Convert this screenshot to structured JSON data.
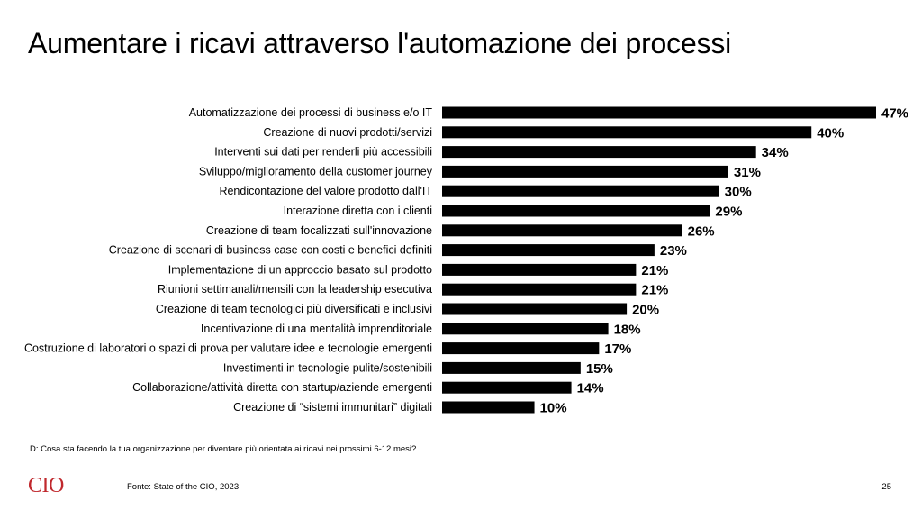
{
  "slide": {
    "title": "Aumentare i ricavi attraverso l'automazione dei processi",
    "question": "D: Cosa sta facendo la tua organizzazione per diventare più orientata ai ricavi nei prossimi 6-12 mesi?",
    "logo": "CIO",
    "source": "Fonte: State of the CIO, 2023",
    "page_number": "25"
  },
  "colors": {
    "bar": "#000000",
    "logo": "#c0282d"
  },
  "chart_data": {
    "type": "bar",
    "orientation": "horizontal",
    "title": "",
    "xlabel": "",
    "ylabel": "",
    "xlim": [
      0,
      47
    ],
    "grid": false,
    "value_suffix": "%",
    "categories": [
      "Automatizzazione dei processi di business e/o IT",
      "Creazione di nuovi prodotti/servizi",
      "Interventi sui dati per renderli più accessibili",
      "Sviluppo/miglioramento della customer journey",
      "Rendicontazione del valore prodotto dall'IT",
      "Interazione diretta con i clienti",
      "Creazione di team focalizzati sull'innovazione",
      "Creazione di scenari di business case con costi e benefici definiti",
      "Implementazione di un approccio basato sul prodotto",
      "Riunioni settimanali/mensili con la leadership esecutiva",
      "Creazione di team tecnologici più diversificati e inclusivi",
      "Incentivazione di una mentalità imprenditoriale",
      "Costruzione di laboratori o spazi di prova per valutare idee e tecnologie emergenti",
      "Investimenti in tecnologie pulite/sostenibili",
      "Collaborazione/attività diretta con startup/aziende emergenti",
      "Creazione di “sistemi immunitari” digitali"
    ],
    "values": [
      47,
      40,
      34,
      31,
      30,
      29,
      26,
      23,
      21,
      21,
      20,
      18,
      17,
      15,
      14,
      10
    ]
  }
}
